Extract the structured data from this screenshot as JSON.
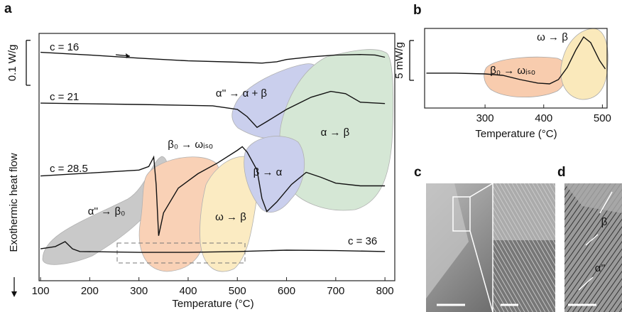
{
  "chart_data": [
    {
      "type": "line",
      "panel_label": "a",
      "xlabel": "Temperature (°C)",
      "ylabel": "Exothermic heat flow",
      "xlim": [
        97,
        820
      ],
      "xticks": [
        100,
        200,
        300,
        400,
        500,
        600,
        700,
        800
      ],
      "ylim": [
        0,
        0.55
      ],
      "scale_bar": {
        "value": 0.1,
        "label": "0.1 W/g"
      },
      "series": [
        {
          "name": "c = 16",
          "color": "#111111",
          "x": [
            100,
            200,
            300,
            400,
            500,
            550,
            580,
            600,
            650,
            700,
            750,
            780,
            800
          ],
          "values": [
            0.508,
            0.502,
            0.495,
            0.489,
            0.486,
            0.484,
            0.487,
            0.492,
            0.498,
            0.502,
            0.503,
            0.502,
            0.497
          ]
        },
        {
          "name": "c = 21",
          "color": "#111111",
          "x": [
            100,
            300,
            450,
            500,
            520,
            540,
            560,
            600,
            650,
            690,
            720,
            750,
            800
          ],
          "values": [
            0.395,
            0.392,
            0.389,
            0.381,
            0.365,
            0.341,
            0.354,
            0.381,
            0.408,
            0.421,
            0.416,
            0.397,
            0.394
          ]
        },
        {
          "name": "c = 28.5",
          "color": "#111111",
          "x": [
            100,
            300,
            320,
            330,
            335,
            340,
            350,
            380,
            420,
            460,
            500,
            510,
            520,
            540,
            550,
            560,
            580,
            610,
            640,
            670,
            700,
            750,
            800
          ],
          "values": [
            0.233,
            0.246,
            0.254,
            0.275,
            0.214,
            0.1,
            0.151,
            0.206,
            0.238,
            0.262,
            0.29,
            0.298,
            0.286,
            0.246,
            0.183,
            0.154,
            0.175,
            0.214,
            0.241,
            0.23,
            0.217,
            0.211,
            0.211
          ]
        },
        {
          "name": "c = 36",
          "color": "#111111",
          "x": [
            100,
            130,
            150,
            165,
            180,
            300,
            400,
            500,
            600,
            700,
            800
          ],
          "values": [
            0.071,
            0.076,
            0.087,
            0.071,
            0.065,
            0.063,
            0.063,
            0.065,
            0.068,
            0.067,
            0.065
          ]
        }
      ],
      "annotations": [
        "α'' → α + β",
        "α → β",
        "β₀ → ωᵢₛₒ",
        "β → α",
        "α'' → β₀",
        "ω → β"
      ]
    },
    {
      "type": "line",
      "panel_label": "b",
      "xlabel": "Temperature (°C)",
      "xlim": [
        197,
        508
      ],
      "xticks": [
        300,
        400,
        500
      ],
      "ylim": [
        0,
        10
      ],
      "scale_bar": {
        "value": 5,
        "label": "5 mW/g"
      },
      "series": [
        {
          "color": "#111111",
          "x": [
            200,
            250,
            300,
            330,
            360,
            390,
            410,
            425,
            440,
            455,
            468,
            480,
            495,
            505
          ],
          "values": [
            4.38,
            4.38,
            4.29,
            4.11,
            3.57,
            3.13,
            3.04,
            3.57,
            5.09,
            7.32,
            8.93,
            8.21,
            5.98,
            4.91
          ]
        }
      ],
      "annotations": [
        "ω → β",
        "β₀ → ωᵢₛₒ"
      ]
    }
  ],
  "images": [
    {
      "panel_label": "c"
    },
    {
      "panel_label": "d",
      "labels": [
        "β",
        "α''"
      ]
    }
  ]
}
